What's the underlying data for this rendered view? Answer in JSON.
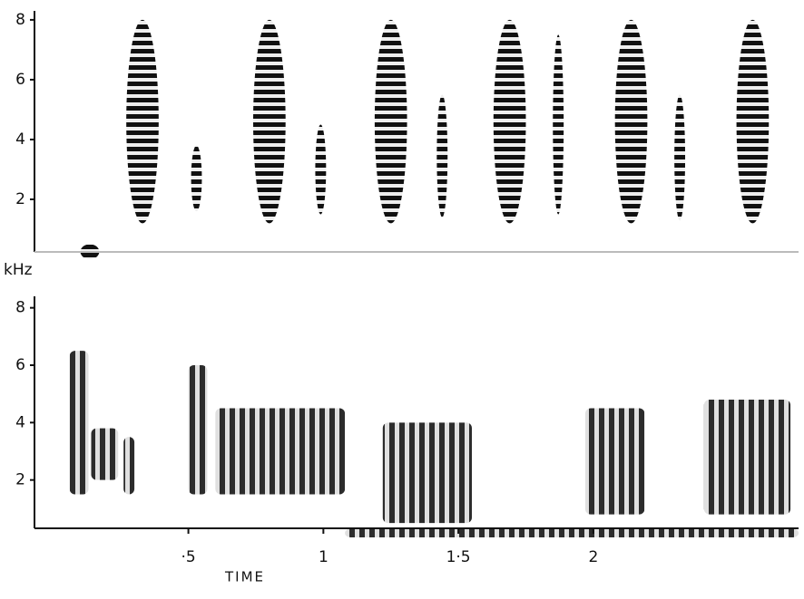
{
  "chart_data": [
    {
      "type": "spectrogram",
      "ylabel": "kHz",
      "xlim": [
        -0.07,
        2.76
      ],
      "ylim": [
        0,
        8.3
      ],
      "yticks": [
        2,
        4,
        6,
        8
      ],
      "syllables": [
        {
          "t": [
            0.1,
            0.17
          ],
          "f": [
            0,
            0.5
          ]
        },
        {
          "t": [
            0.27,
            0.39
          ],
          "f": [
            1.2,
            8
          ]
        },
        {
          "t": [
            0.51,
            0.55
          ],
          "f": [
            1.6,
            3.8
          ]
        },
        {
          "t": [
            0.74,
            0.86
          ],
          "f": [
            1.2,
            8
          ]
        },
        {
          "t": [
            0.97,
            1.01
          ],
          "f": [
            1.5,
            4.5
          ]
        },
        {
          "t": [
            1.19,
            1.31
          ],
          "f": [
            1.2,
            8
          ]
        },
        {
          "t": [
            1.42,
            1.46
          ],
          "f": [
            1.4,
            5.5
          ]
        },
        {
          "t": [
            1.63,
            1.75
          ],
          "f": [
            1.2,
            8
          ]
        },
        {
          "t": [
            1.85,
            1.89
          ],
          "f": [
            1.5,
            7.5
          ]
        },
        {
          "t": [
            2.08,
            2.2
          ],
          "f": [
            1.2,
            8
          ]
        },
        {
          "t": [
            2.3,
            2.34
          ],
          "f": [
            1.3,
            5.5
          ]
        },
        {
          "t": [
            2.53,
            2.65
          ],
          "f": [
            1.2,
            8
          ]
        }
      ]
    },
    {
      "type": "spectrogram",
      "xlim": [
        -0.07,
        2.76
      ],
      "ylim": [
        0,
        8.4
      ],
      "yticks": [
        2,
        4,
        6,
        8
      ],
      "xticks": [
        {
          "value": 0.5,
          "label": "·5"
        },
        1,
        {
          "value": 1.5,
          "label": "1·5"
        },
        2
      ],
      "xlabel": "TIME",
      "syllables": [
        {
          "t": [
            0.06,
            0.13
          ],
          "f": [
            1.5,
            6.5
          ]
        },
        {
          "t": [
            0.14,
            0.24
          ],
          "f": [
            2,
            3.8
          ]
        },
        {
          "t": [
            0.26,
            0.3
          ],
          "f": [
            1.5,
            3.5
          ]
        },
        {
          "t": [
            0.5,
            0.57
          ],
          "f": [
            1.5,
            6
          ]
        },
        {
          "t": [
            0.6,
            1.08
          ],
          "f": [
            1.5,
            4.5
          ]
        },
        {
          "t": [
            1.22,
            1.55
          ],
          "f": [
            0.5,
            4
          ]
        },
        {
          "t": [
            1.97,
            2.19
          ],
          "f": [
            0.8,
            4.5
          ]
        },
        {
          "t": [
            2.41,
            2.73
          ],
          "f": [
            0.8,
            4.8
          ]
        },
        {
          "t": [
            1.08,
            2.76
          ],
          "f": [
            0,
            0.3
          ]
        }
      ]
    }
  ]
}
